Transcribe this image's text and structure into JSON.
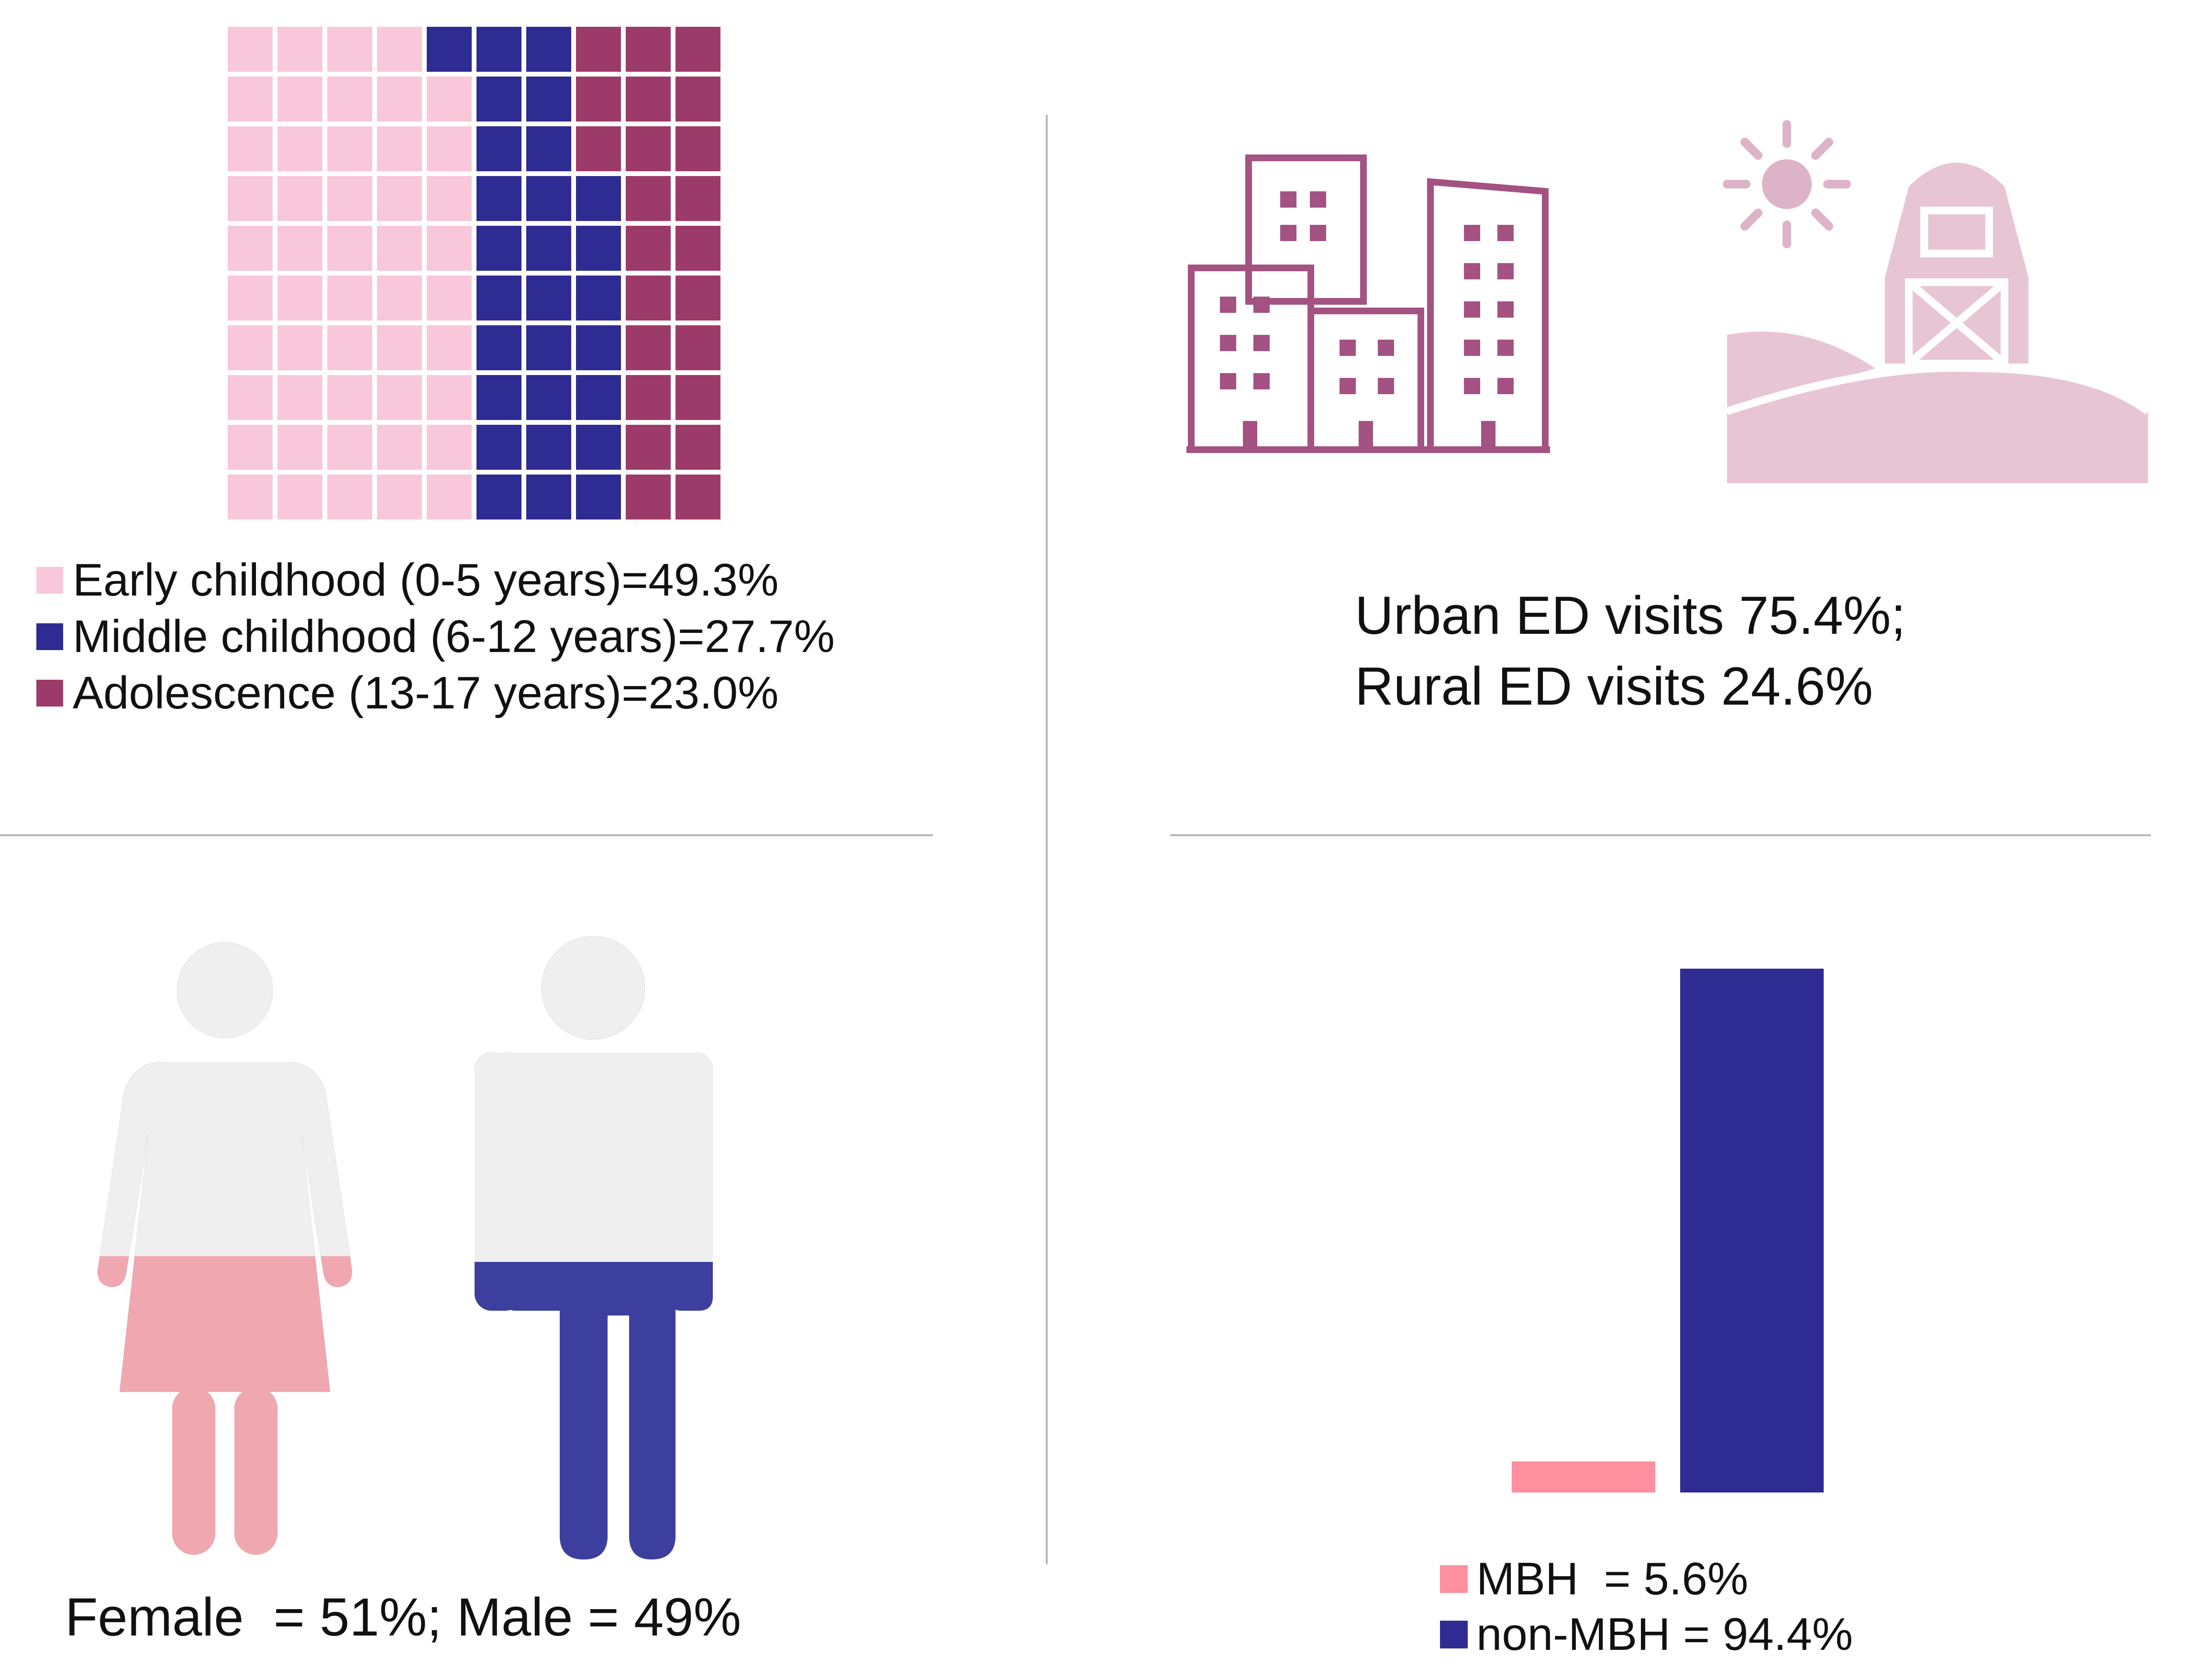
{
  "colors": {
    "early": "#f8c8da",
    "middle": "#2e2b92",
    "adolescence": "#9c3b6a",
    "urban_icon": "#a35282",
    "rural_icon": "#e8c5d5",
    "sun": "#ddb3c8",
    "figure_top": "#efefef",
    "female": "#f1a7b0",
    "male": "#3d3f9f",
    "mbh": "#fd8f9e",
    "non_mbh": "#2e2b92",
    "divider": "#b5b5b5"
  },
  "age_chart": {
    "chart_data": {
      "type": "waffle",
      "grid": {
        "rows": 10,
        "columns": 10
      },
      "series": [
        {
          "key": "early",
          "label": "Early childhood (0-5 years)=49.3%",
          "value": 49.3,
          "cells": 49
        },
        {
          "key": "middle",
          "label": "Middle childhood (6-12 years)=27.7%",
          "value": 27.7,
          "cells": 28
        },
        {
          "key": "adolescence",
          "label": "Adolescence (13-17 years)=23.0%",
          "value": 23.0,
          "cells": 23
        }
      ]
    }
  },
  "location": {
    "icons": [
      "city-buildings-icon",
      "barn-farm-icon",
      "sun-icon"
    ],
    "chart_data": {
      "type": "icon-comparison",
      "series": [
        {
          "name": "Urban",
          "value": 75.4
        },
        {
          "name": "Rural",
          "value": 24.6
        }
      ]
    },
    "text_line1": "Urban ED visits 75.4%;",
    "text_line2": "Rural ED visits 24.6%"
  },
  "sex": {
    "icons": [
      "female-figure-icon",
      "male-figure-icon"
    ],
    "chart_data": {
      "type": "icon-fill",
      "series": [
        {
          "name": "Female",
          "value": 51
        },
        {
          "name": "Male",
          "value": 49
        }
      ]
    },
    "caption": "Female  = 51%; Male = 49%"
  },
  "mbh_chart": {
    "chart_data": {
      "type": "bar",
      "categories": [
        "MBH",
        "non-MBH"
      ],
      "values": [
        5.6,
        94.4
      ],
      "ylim": [
        0,
        100
      ],
      "legend": [
        {
          "key": "mbh",
          "label": "MBH  = 5.6%"
        },
        {
          "key": "non_mbh",
          "label": "non-MBH = 94.4%"
        }
      ]
    }
  }
}
